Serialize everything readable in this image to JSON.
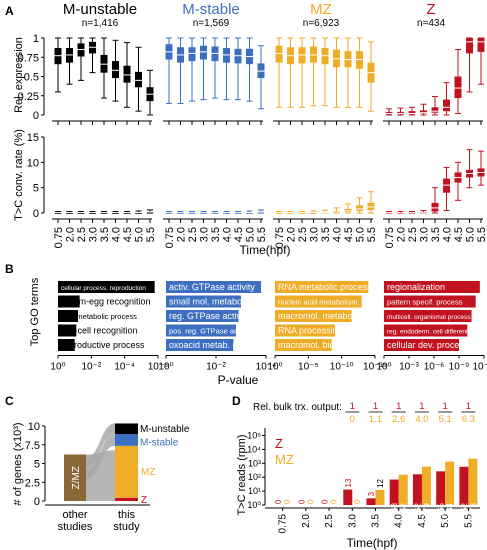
{
  "colors": {
    "m_unstable": "#000000",
    "m_stable": "#3d6fc1",
    "mz": "#efac26",
    "z": "#c1121f",
    "zmz": "#8a6638",
    "flow": "#a8a8a8"
  },
  "chart_data": [
    {
      "panel": "A",
      "type": "box",
      "ylabel": "Rel. expression",
      "ylim": [
        0,
        1
      ],
      "yticks": [
        "0",
        "0.25",
        "0.5",
        "0.75",
        "1"
      ],
      "groups": [
        {
          "name": "M-unstable",
          "n": "n=1,416",
          "color_key": "m_unstable",
          "median": [
            0.77,
            0.78,
            0.85,
            0.88,
            0.66,
            0.58,
            0.52,
            0.45,
            0.27
          ],
          "q1": [
            0.66,
            0.68,
            0.76,
            0.8,
            0.55,
            0.48,
            0.42,
            0.36,
            0.18
          ],
          "q3": [
            0.87,
            0.87,
            0.93,
            0.95,
            0.78,
            0.7,
            0.64,
            0.56,
            0.36
          ],
          "lo": [
            0.3,
            0.4,
            0.45,
            0.55,
            0.22,
            0.18,
            0.1,
            0.05,
            0.0
          ],
          "hi": [
            1.0,
            1.0,
            1.0,
            1.0,
            1.0,
            0.97,
            0.94,
            0.88,
            0.58
          ]
        },
        {
          "name": "M-stable",
          "n": "n=1,569",
          "color_key": "m_stable",
          "median": [
            0.82,
            0.78,
            0.8,
            0.82,
            0.8,
            0.78,
            0.77,
            0.76,
            0.57
          ],
          "q1": [
            0.72,
            0.68,
            0.7,
            0.72,
            0.7,
            0.68,
            0.67,
            0.66,
            0.48
          ],
          "q3": [
            0.92,
            0.88,
            0.88,
            0.9,
            0.89,
            0.87,
            0.86,
            0.86,
            0.67
          ],
          "lo": [
            0.15,
            0.15,
            0.18,
            0.2,
            0.22,
            0.2,
            0.2,
            0.18,
            0.08
          ],
          "hi": [
            1.0,
            1.0,
            1.0,
            1.0,
            1.0,
            1.0,
            1.0,
            1.0,
            0.9
          ]
        },
        {
          "name": "MZ",
          "n": "n=6,923",
          "color_key": "mz",
          "median": [
            0.8,
            0.77,
            0.78,
            0.78,
            0.77,
            0.73,
            0.72,
            0.72,
            0.55
          ],
          "q1": [
            0.68,
            0.66,
            0.67,
            0.68,
            0.66,
            0.62,
            0.62,
            0.6,
            0.42
          ],
          "q3": [
            0.9,
            0.88,
            0.88,
            0.89,
            0.87,
            0.85,
            0.83,
            0.83,
            0.68
          ],
          "lo": [
            0.1,
            0.1,
            0.1,
            0.12,
            0.12,
            0.1,
            0.1,
            0.1,
            0.05
          ],
          "hi": [
            1.0,
            1.0,
            1.0,
            1.0,
            1.0,
            1.0,
            1.0,
            1.0,
            0.95
          ]
        },
        {
          "name": "Z",
          "n": "n=434",
          "color_key": "z",
          "median": [
            0.02,
            0.02,
            0.02,
            0.03,
            0.05,
            0.1,
            0.35,
            0.95,
            0.95
          ],
          "q1": [
            0.01,
            0.01,
            0.01,
            0.02,
            0.03,
            0.05,
            0.22,
            0.8,
            0.82
          ],
          "q3": [
            0.04,
            0.04,
            0.05,
            0.06,
            0.1,
            0.2,
            0.5,
            1.0,
            1.0
          ],
          "lo": [
            0.0,
            0.0,
            0.0,
            0.0,
            0.0,
            0.0,
            0.02,
            0.3,
            0.4
          ],
          "hi": [
            0.08,
            0.09,
            0.1,
            0.14,
            0.24,
            0.42,
            0.85,
            1.0,
            1.0
          ]
        }
      ],
      "x": [
        "0.75",
        "2.0",
        "2.5",
        "3.0",
        "3.5",
        "4.0",
        "4.5",
        "5.0",
        "5.5"
      ],
      "xlabel": "Time(hpf)"
    },
    {
      "panel": "A",
      "type": "box",
      "ylabel": "T>C conv. rate (%)",
      "ylim": [
        0,
        15
      ],
      "yticks": [
        "0",
        "5",
        "10",
        "15"
      ],
      "groups": [
        {
          "name": "M-unstable",
          "color_key": "m_unstable",
          "median": [
            0.05,
            0.05,
            0.05,
            0.05,
            0.05,
            0.05,
            0.05,
            0.1,
            0.2
          ],
          "q1": [
            0.0,
            0.0,
            0.0,
            0.0,
            0.0,
            0.0,
            0.0,
            0.05,
            0.1
          ],
          "q3": [
            0.1,
            0.1,
            0.1,
            0.1,
            0.1,
            0.1,
            0.1,
            0.15,
            0.3
          ],
          "lo": [
            0,
            0,
            0,
            0,
            0,
            0,
            0,
            0,
            0
          ],
          "hi": [
            0.3,
            0.3,
            0.3,
            0.3,
            0.3,
            0.3,
            0.3,
            0.4,
            0.6
          ]
        },
        {
          "name": "M-stable",
          "color_key": "m_stable",
          "median": [
            0.05,
            0.05,
            0.05,
            0.05,
            0.05,
            0.05,
            0.05,
            0.1,
            0.2
          ],
          "q1": [
            0.0,
            0.0,
            0.0,
            0.0,
            0.0,
            0.0,
            0.0,
            0.05,
            0.1
          ],
          "q3": [
            0.1,
            0.1,
            0.1,
            0.1,
            0.1,
            0.1,
            0.1,
            0.15,
            0.3
          ],
          "lo": [
            0,
            0,
            0,
            0,
            0,
            0,
            0,
            0,
            0
          ],
          "hi": [
            0.3,
            0.3,
            0.3,
            0.3,
            0.3,
            0.3,
            0.3,
            0.4,
            0.6
          ]
        },
        {
          "name": "MZ",
          "color_key": "mz",
          "median": [
            0.05,
            0.05,
            0.05,
            0.05,
            0.1,
            0.2,
            0.4,
            0.8,
            1.2
          ],
          "q1": [
            0.0,
            0.0,
            0.0,
            0.0,
            0.0,
            0.1,
            0.2,
            0.4,
            0.6
          ],
          "q3": [
            0.1,
            0.1,
            0.1,
            0.1,
            0.2,
            0.4,
            0.8,
            1.5,
            2.0
          ],
          "lo": [
            0,
            0,
            0,
            0,
            0,
            0,
            0,
            0,
            0
          ],
          "hi": [
            0.3,
            0.3,
            0.3,
            0.4,
            0.6,
            1.0,
            1.8,
            3.0,
            4.2
          ]
        },
        {
          "name": "Z",
          "color_key": "z",
          "median": [
            0.0,
            0.0,
            0.0,
            0.05,
            1.0,
            5.5,
            7.0,
            7.8,
            8.0
          ],
          "q1": [
            0.0,
            0.0,
            0.0,
            0.0,
            0.3,
            4.0,
            6.0,
            7.0,
            7.2
          ],
          "q3": [
            0.1,
            0.1,
            0.1,
            0.2,
            2.0,
            6.8,
            8.0,
            8.5,
            8.8
          ],
          "lo": [
            0,
            0,
            0,
            0,
            0,
            0.5,
            2.5,
            5.0,
            5.5
          ],
          "hi": [
            0.3,
            0.3,
            0.3,
            0.5,
            5.0,
            9.0,
            10.0,
            12.5,
            12.2
          ]
        }
      ],
      "x": [
        "0.75",
        "2.0",
        "2.5",
        "3.0",
        "3.5",
        "4.0",
        "4.5",
        "5.0",
        "5.5"
      ],
      "xlabel": "Time(hpf)"
    },
    {
      "panel": "B",
      "type": "bar",
      "ylabel": "Top GO terms",
      "xlabel": "P-value",
      "groups": [
        {
          "color_key": "m_unstable",
          "xticks": [
            "10⁰",
            "10⁻²",
            "10⁻⁴",
            "10⁻⁶"
          ],
          "xmax_log": 6,
          "terms": [
            {
              "label": "cellular process. reproduction",
              "neg_log_p": 5.8
            },
            {
              "label": "sperm-egg recognition",
              "neg_log_p": 1.3
            },
            {
              "label": "lipid metabolic process",
              "neg_log_p": 1.2
            },
            {
              "label": "cell-cell recognition",
              "neg_log_p": 1.1
            },
            {
              "label": "reproductive process",
              "neg_log_p": 1.0
            }
          ]
        },
        {
          "color_key": "m_stable",
          "xticks": [
            "10⁰",
            "10⁻²",
            "10⁻⁴"
          ],
          "xmax_log": 4,
          "terms": [
            {
              "label": "activ. GTPase activity",
              "neg_log_p": 3.8
            },
            {
              "label": "small mol. metabolism",
              "neg_log_p": 3.0
            },
            {
              "label": "reg. GTPase activity",
              "neg_log_p": 2.9
            },
            {
              "label": "pos. reg. GTPase activ.",
              "neg_log_p": 2.8
            },
            {
              "label": "oxoacid metab. process",
              "neg_log_p": 2.7
            }
          ]
        },
        {
          "color_key": "mz",
          "xticks": [
            "10⁰",
            "10⁻⁵",
            "10⁻¹⁰",
            "10⁻¹⁵"
          ],
          "xmax_log": 15,
          "terms": [
            {
              "label": "RNA metabolic process",
              "neg_log_p": 14
            },
            {
              "label": "nucleic acid metabolism",
              "neg_log_p": 13
            },
            {
              "label": "macromol. metabolism",
              "neg_log_p": 11.5
            },
            {
              "label": "RNA processing",
              "neg_log_p": 9
            },
            {
              "label": "macromol. biosynthesis",
              "neg_log_p": 8.5
            }
          ]
        },
        {
          "color_key": "z",
          "xticks": [
            "10⁰",
            "10⁻³",
            "10⁻⁶",
            "10⁻⁹",
            "10⁻¹²"
          ],
          "xmax_log": 12,
          "terms": [
            {
              "label": "regionalization",
              "neg_log_p": 11.5
            },
            {
              "label": "pattern specif. process",
              "neg_log_p": 11
            },
            {
              "label": "multicell. organismal process",
              "neg_log_p": 10.5
            },
            {
              "label": "reg. endoderm. cell differentiation",
              "neg_log_p": 10
            },
            {
              "label": "cellular dev. process",
              "neg_log_p": 9
            }
          ]
        }
      ]
    },
    {
      "panel": "C",
      "type": "bar",
      "ylabel": "# of genes (x10³)",
      "ylim": [
        0,
        10
      ],
      "yticks": [
        "0",
        "2.5",
        "5",
        "7.5",
        "10"
      ],
      "categories": [
        "other\nstudies",
        "this\nstudy"
      ],
      "category_lines": [
        [
          "other",
          "studies"
        ],
        [
          "this",
          "study"
        ]
      ],
      "series_other": [
        {
          "name": "Z/MZ",
          "value": 6.2,
          "color_key": "zmz"
        }
      ],
      "series_this": [
        {
          "name": "Z",
          "value": 0.434,
          "color_key": "z"
        },
        {
          "name": "MZ",
          "value": 6.923,
          "color_key": "mz"
        },
        {
          "name": "M-stable",
          "value": 1.569,
          "color_key": "m_stable"
        },
        {
          "name": "M-unstable",
          "value": 1.416,
          "color_key": "m_unstable"
        }
      ]
    },
    {
      "panel": "D",
      "type": "bar",
      "title": "Rel. bulk trx. output:",
      "ylabel": "T>C reads (rpm)",
      "yscale": "log",
      "ylim": [
        1,
        1000000
      ],
      "yticks": [
        "10⁰",
        "10¹",
        "10²",
        "10³",
        "10⁴",
        "10⁵"
      ],
      "xlabel": "Time(hpf)",
      "categories": [
        "0.75",
        "2.0",
        "2.5",
        "3.0",
        "3.5",
        "4.0",
        "4.5",
        "5.0",
        "5.5"
      ],
      "series": [
        {
          "name": "Z",
          "color_key": "z",
          "values": [
            0,
            0,
            0,
            13,
            3,
            68,
            162,
            265,
            562
          ],
          "labels": [
            "0",
            "0",
            "0",
            "13",
            "3",
            "68",
            "162",
            "265",
            "562"
          ]
        },
        {
          "name": "MZ",
          "color_key": "mz",
          "values": [
            0,
            0,
            0,
            0,
            12,
            152,
            579,
            1334,
            2173
          ],
          "labels": [
            "0",
            "0",
            "0",
            "0",
            "12",
            "152",
            "579",
            "1334",
            "2173"
          ]
        }
      ],
      "ratio_top": [
        "1",
        "1",
        "1",
        "1",
        "1",
        "1"
      ],
      "ratio_bottom": [
        "0",
        "1.1",
        "2.6",
        "4.0",
        "5.1",
        "6.3"
      ]
    }
  ],
  "panel_letters": [
    "A",
    "B",
    "C",
    "D"
  ]
}
